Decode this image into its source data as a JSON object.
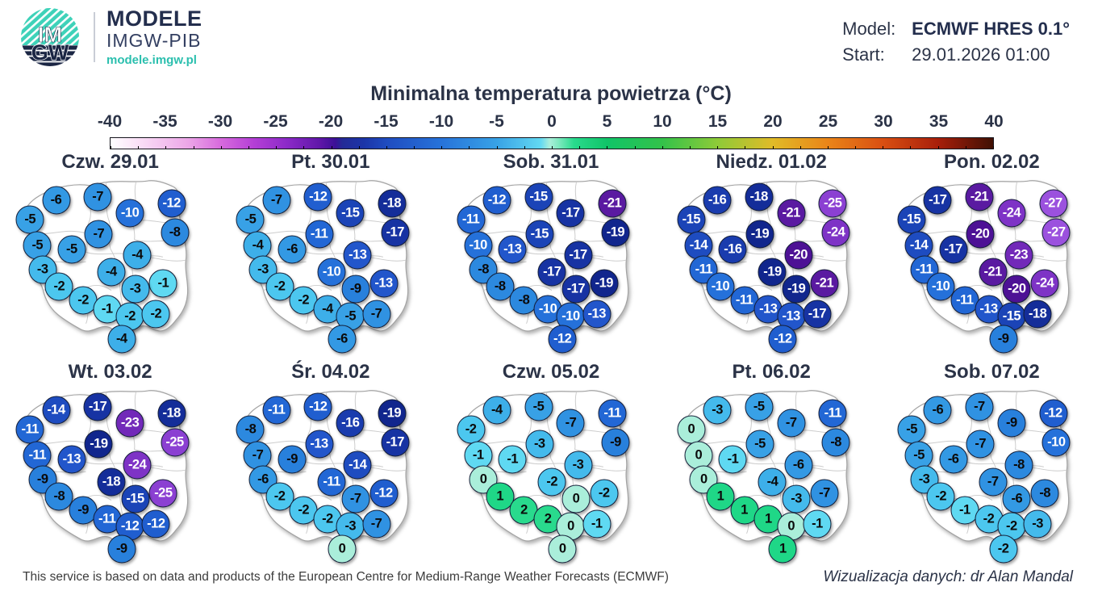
{
  "header": {
    "logo": {
      "imgw_top": "IM",
      "imgw_bottom": "GW",
      "brand": "MODELE",
      "brand_sub": "IMGW-PIB",
      "brand_url": "modele.imgw.pl",
      "teal": "#3ed2b9",
      "navy": "#1b2644"
    },
    "model_label": "Model:",
    "model_value": "ECMWF HRES 0.1°",
    "start_label": "Start:",
    "start_value": "29.01.2026 01:00"
  },
  "title": "Minimalna temperatura powietrza (°C)",
  "colorbar": {
    "min": -40,
    "max": 40,
    "tick_step": 5,
    "labels": [
      "-40",
      "-35",
      "-30",
      "-25",
      "-20",
      "-15",
      "-10",
      "-5",
      "0",
      "5",
      "10",
      "15",
      "20",
      "25",
      "30",
      "35",
      "40"
    ],
    "gradient": [
      {
        "v": -40,
        "c": "#ffffff"
      },
      {
        "v": -37,
        "c": "#f9daf5"
      },
      {
        "v": -33,
        "c": "#eda7e8"
      },
      {
        "v": -30,
        "c": "#d76add"
      },
      {
        "v": -27,
        "c": "#b43fd6"
      },
      {
        "v": -24,
        "c": "#8c2ac8"
      },
      {
        "v": -21,
        "c": "#5f17a8"
      },
      {
        "v": -19.6,
        "c": "#3b1096"
      },
      {
        "v": -19,
        "c": "#232a96"
      },
      {
        "v": -17,
        "c": "#1c35a8"
      },
      {
        "v": -15,
        "c": "#1f4cc0"
      },
      {
        "v": -10,
        "c": "#2773da"
      },
      {
        "v": -5,
        "c": "#38a2e6"
      },
      {
        "v": -1,
        "c": "#63d9f2"
      },
      {
        "v": -0.2,
        "c": "#aaeeda"
      },
      {
        "v": 0.6,
        "c": "#7fe9c0"
      },
      {
        "v": 2,
        "c": "#29da8d"
      },
      {
        "v": 5,
        "c": "#10c468"
      },
      {
        "v": 10,
        "c": "#33c24a"
      },
      {
        "v": 15,
        "c": "#8ecb38"
      },
      {
        "v": 20,
        "c": "#e0bb28"
      },
      {
        "v": 25,
        "c": "#ea8518"
      },
      {
        "v": 30,
        "c": "#d94f12"
      },
      {
        "v": 35,
        "c": "#a81f0a"
      },
      {
        "v": 40,
        "c": "#401004"
      }
    ]
  },
  "temp_colors": {
    "2": "#29da8d",
    "1": "#1fd787",
    "0": "#aaeeda",
    "-1": "#5fd9f2",
    "-2": "#4cc7ef",
    "-3": "#44baec",
    "-4": "#3dafe9",
    "-5": "#38a1e6",
    "-6": "#3399e4",
    "-7": "#3092e2",
    "-8": "#2c89df",
    "-9": "#2880dc",
    "-10": "#2571da",
    "-11": "#2267d5",
    "-12": "#205ecf",
    "-13": "#2256cb",
    "-14": "#1e4cc0",
    "-15": "#1b44b7",
    "-16": "#1a3cae",
    "-17": "#1733a3",
    "-18": "#142d99",
    "-19": "#11268d",
    "-20": "#4d1195",
    "-21": "#5a1aa1",
    "-23": "#7229b9",
    "-24": "#7e33c6",
    "-25": "#8b40d2",
    "-27": "#9b51de"
  },
  "chart_data": {
    "type": "map_small_multiples",
    "title": "Minimalna temperatura powietrza (°C)",
    "model": "ECMWF HRES 0.1°",
    "start": "29.01.2026 01:00",
    "value_unit": "°C",
    "colorbar_range": [
      -40,
      40
    ],
    "legend_position": "top",
    "stations": [
      {
        "x": 0.24,
        "y": 0.13
      },
      {
        "x": 0.44,
        "y": 0.115
      },
      {
        "x": 0.595,
        "y": 0.2
      },
      {
        "x": 0.795,
        "y": 0.15
      },
      {
        "x": 0.115,
        "y": 0.235
      },
      {
        "x": 0.81,
        "y": 0.305
      },
      {
        "x": 0.445,
        "y": 0.315
      },
      {
        "x": 0.15,
        "y": 0.375
      },
      {
        "x": 0.315,
        "y": 0.4
      },
      {
        "x": 0.63,
        "y": 0.43
      },
      {
        "x": 0.505,
        "y": 0.52
      },
      {
        "x": 0.175,
        "y": 0.51
      },
      {
        "x": 0.755,
        "y": 0.585
      },
      {
        "x": 0.255,
        "y": 0.6
      },
      {
        "x": 0.62,
        "y": 0.615
      },
      {
        "x": 0.37,
        "y": 0.675
      },
      {
        "x": 0.485,
        "y": 0.725
      },
      {
        "x": 0.595,
        "y": 0.765
      },
      {
        "x": 0.72,
        "y": 0.75
      },
      {
        "x": 0.555,
        "y": 0.885
      }
    ],
    "series": [
      {
        "name": "Czw. 29.01",
        "values": [
          -6,
          -7,
          -10,
          -12,
          -5,
          -8,
          -7,
          -5,
          -5,
          -4,
          -4,
          -3,
          -1,
          -2,
          -3,
          -2,
          -1,
          -2,
          -2,
          -4
        ]
      },
      {
        "name": "Pt. 30.01",
        "values": [
          -7,
          -12,
          -15,
          -18,
          -5,
          -17,
          -11,
          -4,
          -6,
          -13,
          -10,
          -3,
          -13,
          -2,
          -9,
          -2,
          -4,
          -5,
          -7,
          -6
        ]
      },
      {
        "name": "Sob. 31.01",
        "values": [
          -12,
          -15,
          -17,
          -21,
          -11,
          -19,
          -15,
          -10,
          -13,
          -17,
          -17,
          -8,
          -19,
          -8,
          -17,
          -8,
          -10,
          -10,
          -13,
          -12
        ]
      },
      {
        "name": "Niedz. 01.02",
        "values": [
          -16,
          -18,
          -21,
          -25,
          -15,
          -24,
          -19,
          -14,
          -16,
          -20,
          -19,
          -11,
          -21,
          -10,
          -19,
          -11,
          -13,
          -13,
          -17,
          -12
        ]
      },
      {
        "name": "Pon. 02.02",
        "values": [
          -17,
          -21,
          -24,
          -27,
          -15,
          -27,
          -20,
          -14,
          -17,
          -23,
          -21,
          -11,
          -24,
          -10,
          -20,
          -11,
          -13,
          -15,
          -18,
          -9
        ]
      },
      {
        "name": "Wt. 03.02",
        "values": [
          -14,
          -17,
          -23,
          -18,
          -11,
          -25,
          -19,
          -11,
          -13,
          -24,
          -18,
          -9,
          -25,
          -8,
          -15,
          -9,
          -11,
          -12,
          -12,
          -9
        ]
      },
      {
        "name": "Śr. 04.02",
        "values": [
          -11,
          -12,
          -16,
          -19,
          -8,
          -17,
          -13,
          -7,
          -9,
          -14,
          -11,
          -6,
          -12,
          -2,
          -7,
          -2,
          -2,
          -3,
          -7,
          0
        ]
      },
      {
        "name": "Czw. 05.02",
        "values": [
          -4,
          -5,
          -7,
          -11,
          -2,
          -9,
          -3,
          -1,
          -1,
          -3,
          -2,
          0,
          -2,
          1,
          0,
          2,
          2,
          0,
          -1,
          0
        ]
      },
      {
        "name": "Pt. 06.02",
        "values": [
          -3,
          -5,
          -7,
          -11,
          0,
          -8,
          -5,
          0,
          -1,
          -6,
          -4,
          0,
          -7,
          1,
          -3,
          1,
          1,
          0,
          -1,
          1
        ]
      },
      {
        "name": "Sob. 07.02",
        "values": [
          -6,
          -7,
          -9,
          -12,
          -5,
          -10,
          -7,
          -5,
          -6,
          -8,
          -7,
          -3,
          -8,
          -2,
          -6,
          -1,
          -2,
          -2,
          -3,
          -2
        ]
      }
    ]
  },
  "footer": {
    "attribution": "This service is based on data and products of the European Centre for Medium-Range Weather Forecasts (ECMWF)",
    "credit": "Wizualizacja danych: dr Alan Mandal"
  }
}
